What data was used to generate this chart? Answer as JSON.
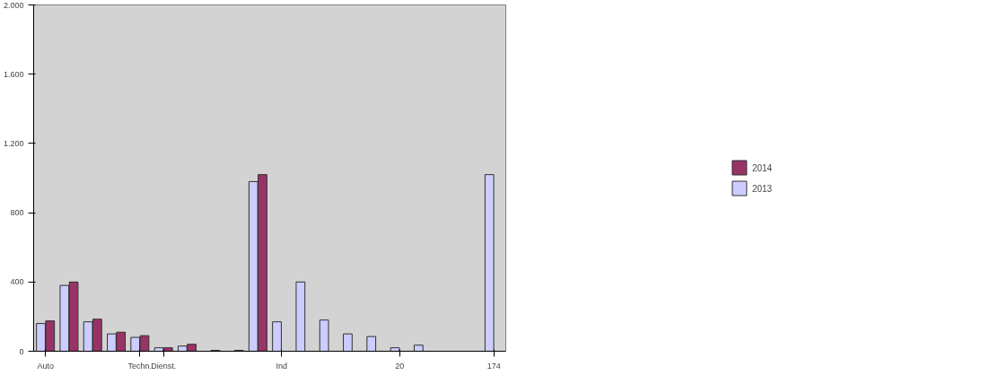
{
  "chart_data": {
    "type": "bar",
    "categories": [
      "Auto",
      null,
      null,
      null,
      "Techn.",
      "Dienst.",
      null,
      null,
      null,
      null,
      "Ind",
      null,
      null,
      null,
      null,
      "20",
      null,
      null,
      null,
      "174"
    ],
    "series": [
      {
        "name": "2013",
        "color": "#ccccff",
        "values": [
          160,
          380,
          170,
          100,
          80,
          20,
          30,
          null,
          null,
          980,
          170,
          400,
          180,
          100,
          85,
          20,
          35,
          null,
          null,
          1020
        ]
      },
      {
        "name": "2014",
        "color": "#993366",
        "values": [
          175,
          400,
          185,
          110,
          90,
          20,
          40,
          5,
          5,
          1020,
          null,
          null,
          null,
          null,
          null,
          null,
          null,
          null,
          null,
          null
        ]
      }
    ],
    "ylim": [
      0,
      2000
    ],
    "yticks": [
      0,
      400,
      800,
      {
        "value": 1200,
        "label": "1.200"
      },
      {
        "value": 1600,
        "label": "1.600"
      },
      {
        "value": 2000,
        "label": "2.000"
      }
    ],
    "grid": false,
    "legend": "right"
  }
}
